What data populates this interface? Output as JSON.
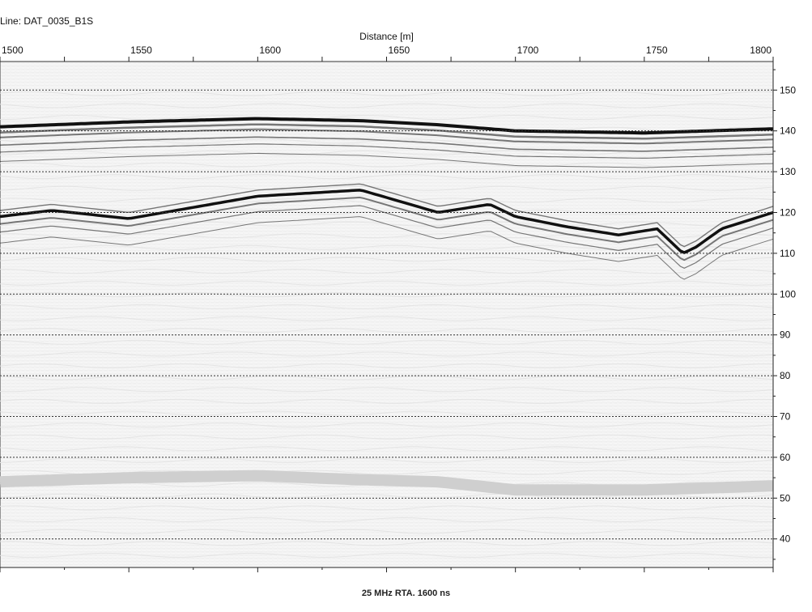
{
  "header": {
    "line_label": "Line: DAT_0035_B1S"
  },
  "footer": {
    "text": "25 MHz RTA. 1600 ns"
  },
  "chart_data": {
    "type": "radargram",
    "title": "",
    "xlabel": "Distance [m]",
    "ylabel": "",
    "xlim": [
      1500,
      1800
    ],
    "ylim": [
      33,
      157
    ],
    "x_tick_labels": [
      1500,
      1550,
      1600,
      1650,
      1700,
      1750,
      1800
    ],
    "y_tick_labels": [
      40,
      50,
      60,
      70,
      80,
      90,
      100,
      110,
      120,
      130,
      140,
      150
    ],
    "grid_lines_y": [
      40,
      50,
      60,
      70,
      80,
      90,
      100,
      110,
      120,
      130,
      140,
      150
    ],
    "grid": "dashed horizontal",
    "reflectors": [
      {
        "name": "surface",
        "x": [
          1500,
          1550,
          1600,
          1640,
          1670,
          1700,
          1750,
          1800
        ],
        "y": [
          141,
          142.2,
          143,
          142.5,
          141.5,
          140,
          139.5,
          140.5
        ]
      },
      {
        "name": "deep reflector",
        "x": [
          1500,
          1520,
          1550,
          1600,
          1640,
          1670,
          1690,
          1700,
          1720,
          1740,
          1755,
          1765,
          1770,
          1780,
          1800
        ],
        "y": [
          119,
          120.5,
          118.5,
          124,
          125.5,
          120,
          122,
          119,
          116.5,
          114.5,
          116,
          110,
          111.5,
          116,
          120
        ]
      },
      {
        "name": "bottom band",
        "x": [
          1500,
          1550,
          1600,
          1640,
          1670,
          1700,
          1750,
          1800
        ],
        "y": [
          54,
          55,
          55.5,
          54.5,
          54,
          52,
          52,
          53
        ]
      }
    ],
    "colors": {
      "background": "#f7f7f7",
      "reflector": "#111111",
      "band": "#cfcfcf",
      "grid": "#333333"
    }
  }
}
